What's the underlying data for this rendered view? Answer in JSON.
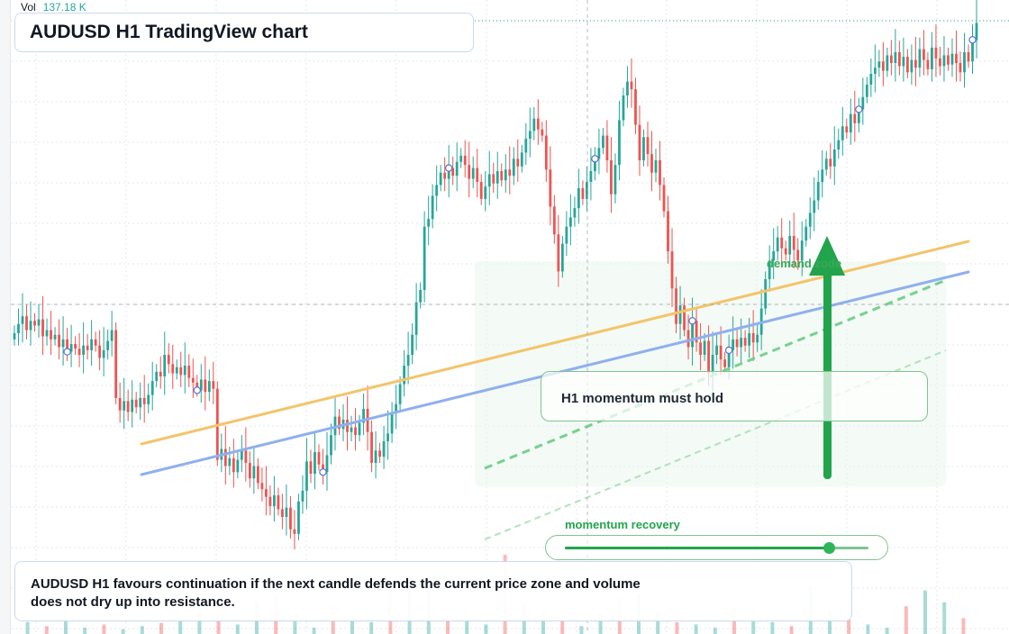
{
  "title": "AUDUSD H1 TradingView chart",
  "volume": {
    "label": "Vol",
    "value": "137.18 K"
  },
  "commentary": {
    "line1": "AUDUSD H1 favours continuation if the next candle defends the current price zone and volume",
    "line2": "does not dry up into resistance."
  },
  "annotations": {
    "demand_zone_label": "demand zode",
    "hold_message": "H1 momentum must hold",
    "momentum_label": "momentum recovery",
    "momentum_level": 0.87
  },
  "colors": {
    "up": "#26a69a",
    "down": "#ef5350",
    "accent_green": "#22a44c",
    "trend_orange": "#f3c46a",
    "trend_blue": "#8fb0ee",
    "grid": "#e3e7ee"
  },
  "icons": [
    "arrow-up-icon"
  ],
  "chart_data": {
    "type": "candlestick",
    "symbol": "AUDUSD",
    "timeframe": "H1",
    "price_scale": "relative",
    "grid": true,
    "close": [
      100.0,
      100.6,
      101.1,
      100.2,
      100.8,
      100.5,
      100.9,
      99.8,
      100.2,
      99.6,
      99.9,
      99.1,
      99.6,
      98.8,
      99.3,
      99.0,
      98.6,
      99.2,
      98.9,
      99.6,
      99.2,
      98.4,
      98.9,
      99.5,
      100.2,
      95.8,
      95.0,
      95.6,
      94.9,
      95.7,
      95.2,
      95.8,
      95.4,
      96.0,
      96.9,
      97.5,
      97.2,
      98.6,
      98.0,
      97.4,
      97.8,
      97.3,
      97.9,
      97.1,
      96.8,
      96.3,
      97.0,
      96.2,
      96.9,
      96.4,
      91.8,
      92.5,
      91.4,
      91.9,
      91.0,
      91.8,
      92.4,
      91.6,
      90.6,
      91.4,
      90.3,
      89.9,
      89.4,
      88.8,
      89.5,
      88.6,
      88.1,
      88.7,
      87.3,
      87.0,
      89.1,
      89.8,
      91.7,
      90.9,
      92.3,
      91.5,
      91.0,
      92.1,
      93.4,
      94.6,
      93.8,
      94.4,
      93.6,
      93.9,
      93.4,
      94.2,
      95.1,
      93.6,
      91.6,
      92.4,
      92.0,
      93.0,
      93.5,
      94.8,
      95.4,
      96.7,
      97.9,
      98.6,
      99.9,
      102.0,
      102.8,
      106.9,
      107.4,
      108.9,
      109.6,
      110.4,
      110.0,
      110.7,
      110.2,
      111.1,
      111.5,
      110.9,
      110.0,
      110.7,
      109.8,
      108.7,
      109.5,
      110.3,
      109.7,
      110.5,
      109.9,
      110.6,
      110.2,
      111.3,
      110.8,
      111.7,
      112.6,
      113.1,
      113.9,
      113.2,
      112.8,
      110.6,
      108.2,
      106.4,
      104.0,
      105.8,
      106.9,
      107.5,
      108.1,
      109.4,
      108.7,
      109.8,
      110.5,
      111.3,
      112.0,
      112.8,
      111.2,
      109.0,
      110.9,
      113.8,
      115.4,
      116.3,
      115.8,
      113.5,
      111.2,
      112.7,
      111.6,
      110.4,
      111.2,
      109.6,
      107.9,
      105.3,
      102.9,
      100.6,
      101.8,
      100.2,
      99.1,
      100.8,
      99.4,
      98.6,
      99.5,
      97.4,
      98.6,
      99.2,
      98.3,
      97.8,
      98.9,
      99.6,
      99.1,
      99.7,
      99.2,
      100.0,
      99.4,
      99.9,
      101.6,
      103.5,
      104.7,
      105.3,
      106.2,
      105.5,
      105.1,
      106.3,
      105.4,
      104.7,
      106.0,
      106.9,
      107.8,
      108.6,
      109.8,
      110.6,
      111.3,
      110.8,
      111.9,
      112.5,
      113.4,
      113.0,
      114.2,
      113.6,
      114.5,
      115.3,
      116.1,
      116.8,
      117.2,
      117.6,
      117.0,
      118.0,
      117.5,
      118.2,
      117.3,
      117.9,
      116.9,
      117.7,
      117.2,
      118.4,
      117.7,
      117.1,
      118.5,
      117.8,
      117.3,
      118.0,
      117.4,
      118.1,
      117.5,
      116.9,
      118.2,
      117.6,
      119.0,
      120.1
    ],
    "volume_relative": [
      0.15,
      0.1,
      0.18,
      0.08,
      0.12,
      0.06,
      0.1,
      0.14,
      0.2,
      0.3,
      0.25,
      0.12,
      0.4,
      0.5,
      0.22,
      0.08,
      0.35,
      0.2,
      0.15,
      0.6,
      0.7,
      0.55,
      0.25,
      0.18,
      0.12,
      1.0,
      0.4,
      0.3,
      0.18,
      0.1,
      0.22,
      0.45,
      0.5,
      0.28,
      0.15,
      0.12,
      0.08,
      0.35,
      0.2,
      0.15,
      0.1,
      0.6,
      0.3,
      0.18,
      0.12,
      0.08,
      0.35,
      0.55,
      0.4,
      0.2
    ],
    "markers": [
      "circle",
      "circle",
      "circle",
      "circle",
      "circle",
      "circle",
      "circle",
      "circle",
      "circle",
      "circle"
    ],
    "trendlines": [
      "orange trendline",
      "blue trendline",
      "green dashed trendline",
      "light green dashed trendline"
    ],
    "last_price_line": "dotted",
    "crosshair": true
  }
}
